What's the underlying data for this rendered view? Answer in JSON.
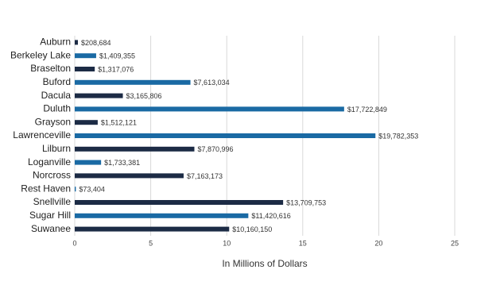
{
  "chart_data": {
    "type": "barh",
    "xlabel": "In Millions of Dollars",
    "categories": [
      "Auburn",
      "Berkeley Lake",
      "Braselton",
      "Buford",
      "Dacula",
      "Duluth",
      "Grayson",
      "Lawrenceville",
      "Lilburn",
      "Loganville",
      "Norcross",
      "Rest Haven",
      "Snellville",
      "Sugar Hill",
      "Suwanee"
    ],
    "values": [
      0.208684,
      1.409355,
      1.317076,
      7.613034,
      3.165806,
      17.722849,
      1.512121,
      19.782353,
      7.870996,
      1.733381,
      7.163173,
      0.073404,
      13.709753,
      11.420616,
      10.16015
    ],
    "value_labels": [
      "$208,684",
      "$1,409,355",
      "$1,317,076",
      "$7,613,034",
      "$3,165,806",
      "$17,722,849",
      "$1,512,121",
      "$19,782,353",
      "$7,870,996",
      "$1,733,381",
      "$7,163,173",
      "$73,404",
      "$13,709,753",
      "$11,420,616",
      "$10,160,150"
    ],
    "colors": [
      "#1c2b45",
      "#1a6aa4",
      "#1c2b45",
      "#1a6aa4",
      "#1c2b45",
      "#1a6aa4",
      "#1c2b45",
      "#1a6aa4",
      "#1c2b45",
      "#1a6aa4",
      "#1c2b45",
      "#1a6aa4",
      "#1c2b45",
      "#1a6aa4",
      "#1c2b45"
    ],
    "xlim": [
      0,
      25
    ],
    "xticks": [
      0,
      5,
      10,
      15,
      20,
      25
    ],
    "grid": true
  }
}
